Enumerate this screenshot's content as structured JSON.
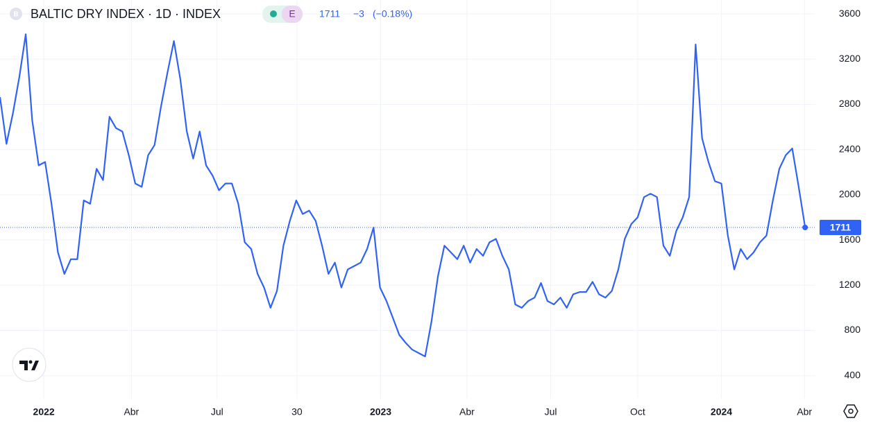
{
  "chart_data": {
    "type": "line",
    "title": "BALTIC DRY INDEX · 1D · INDEX",
    "symbol_badge": "B",
    "exchange_badge": "E",
    "change": "−3",
    "change_percent": "(−0.18%)",
    "series": [
      {
        "name": "BALTIC DRY INDEX",
        "color": "#2f62f5",
        "values": [
          2864,
          2450,
          2720,
          3040,
          3420,
          2660,
          2260,
          2290,
          1920,
          1490,
          1300,
          1430,
          1430,
          1950,
          1920,
          2230,
          2130,
          2690,
          2590,
          2560,
          2350,
          2100,
          2070,
          2350,
          2440,
          2780,
          3080,
          3360,
          3020,
          2560,
          2320,
          2560,
          2260,
          2170,
          2040,
          2100,
          2100,
          1920,
          1580,
          1520,
          1300,
          1180,
          1000,
          1150,
          1550,
          1770,
          1950,
          1830,
          1860,
          1770,
          1550,
          1300,
          1400,
          1180,
          1340,
          1370,
          1400,
          1520,
          1710,
          1180,
          1060,
          910,
          760,
          690,
          630,
          600,
          570,
          880,
          1280,
          1550,
          1490,
          1430,
          1550,
          1400,
          1520,
          1460,
          1580,
          1610,
          1460,
          1340,
          1030,
          1000,
          1060,
          1090,
          1220,
          1060,
          1030,
          1090,
          1000,
          1120,
          1140,
          1140,
          1230,
          1120,
          1090,
          1150,
          1340,
          1610,
          1740,
          1800,
          1980,
          2010,
          1980,
          1550,
          1460,
          1680,
          1800,
          1980,
          3330,
          2500,
          2290,
          2120,
          2100,
          1640,
          1340,
          1520,
          1430,
          1490,
          1580,
          1640,
          1950,
          2230,
          2350,
          2410,
          2070,
          1711
        ]
      }
    ],
    "xlim": [
      0,
      126.6
    ],
    "xticks": [
      {
        "value": 6.8,
        "label": "2022"
      },
      {
        "value": 20.4,
        "label": "Abr"
      },
      {
        "value": 33.7,
        "label": "Jul"
      },
      {
        "value": 46.1,
        "label": "30"
      },
      {
        "value": 59.1,
        "label": "2023"
      },
      {
        "value": 72.5,
        "label": "Abr"
      },
      {
        "value": 85.5,
        "label": "Jul"
      },
      {
        "value": 99.0,
        "label": "Oct"
      },
      {
        "value": 112.0,
        "label": "2024"
      },
      {
        "value": 124.9,
        "label": "Abr"
      }
    ],
    "ylim": [
      195.9,
      3723.1
    ],
    "yticks": [
      400,
      800,
      1200,
      1600,
      2000,
      2400,
      2800,
      3200,
      3600
    ],
    "grid": true
  }
}
